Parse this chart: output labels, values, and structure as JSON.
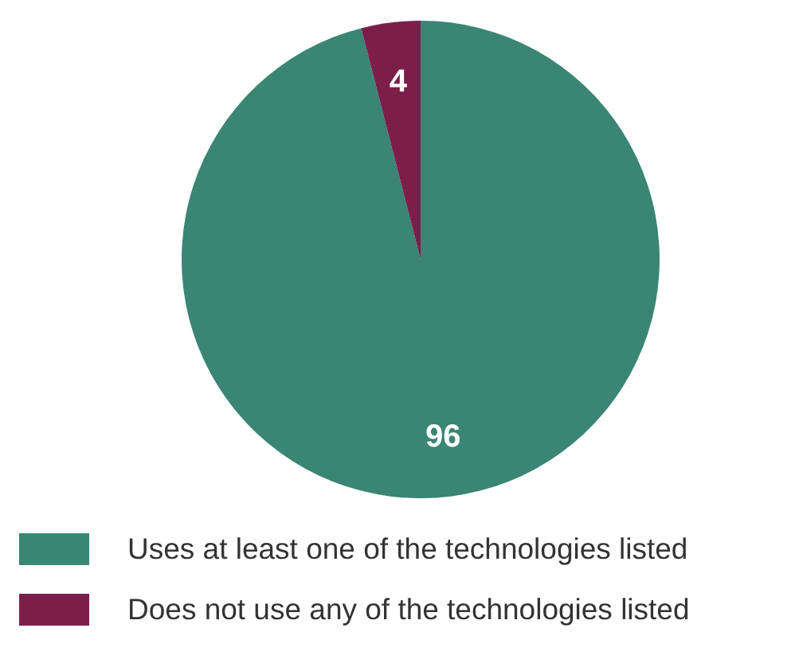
{
  "chart_data": {
    "type": "pie",
    "categories": [
      "Uses at least one of the technologies listed",
      "Does not use any of the technologies listed"
    ],
    "values": [
      96,
      4
    ],
    "colors": [
      "#3a8574",
      "#7b1f4a"
    ],
    "data_labels": true,
    "legend": "bottom"
  }
}
